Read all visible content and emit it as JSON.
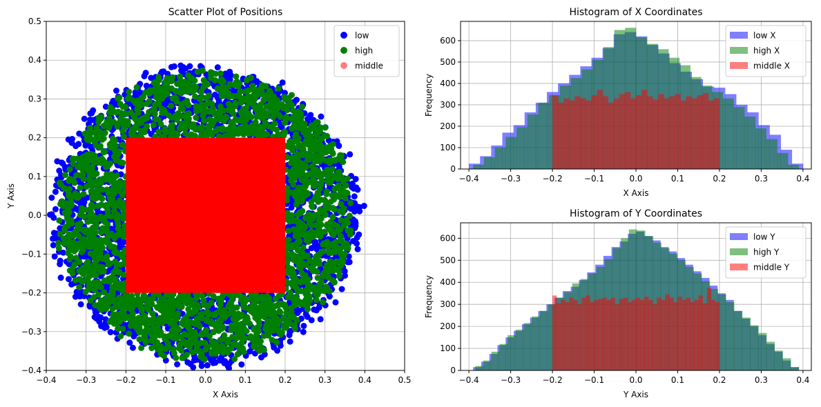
{
  "chart_data": [
    {
      "type": "scatter",
      "title": "Scatter Plot of Positions",
      "xlabel": "X Axis",
      "ylabel": "Y Axis",
      "xlim": [
        -0.4,
        0.5
      ],
      "ylim": [
        -0.4,
        0.5
      ],
      "xticks": [
        -0.4,
        -0.3,
        -0.2,
        -0.1,
        0.0,
        0.1,
        0.2,
        0.3,
        0.4,
        0.5
      ],
      "xtick_labels": [
        "−0.4",
        "−0.3",
        "−0.2",
        "−0.1",
        "0.0",
        "0.1",
        "0.2",
        "0.3",
        "0.4",
        "0.5"
      ],
      "yticks": [
        -0.4,
        -0.3,
        -0.2,
        -0.1,
        0.0,
        0.1,
        0.2,
        0.3,
        0.4,
        0.5
      ],
      "ytick_labels": [
        "−0.4",
        "−0.3",
        "−0.2",
        "−0.1",
        "0.0",
        "0.1",
        "0.2",
        "0.3",
        "0.4",
        "0.5"
      ],
      "grid": true,
      "legend_position": "top-right",
      "series": [
        {
          "name": "low",
          "color": "#0000ff",
          "alpha": 1.0,
          "outer_radius": 0.4,
          "inner_halfwidth": 0.2
        },
        {
          "name": "high",
          "color": "#008000",
          "alpha": 1.0,
          "outer_radius": 0.39,
          "inner_halfwidth": 0.2
        },
        {
          "name": "middle",
          "color": "#ff0000",
          "alpha": 0.5,
          "region": {
            "x": [
              -0.2,
              0.2
            ],
            "y": [
              -0.2,
              0.2
            ]
          }
        }
      ]
    },
    {
      "type": "bar",
      "title": "Histogram of X Coordinates",
      "xlabel": "X Axis",
      "ylabel": "Frequency",
      "xlim": [
        -0.42,
        0.42
      ],
      "ylim": [
        0,
        690
      ],
      "xticks": [
        -0.4,
        -0.3,
        -0.2,
        -0.1,
        0.0,
        0.1,
        0.2,
        0.3,
        0.4
      ],
      "xtick_labels": [
        "−0.4",
        "−0.3",
        "−0.2",
        "−0.1",
        "0.0",
        "0.1",
        "0.2",
        "0.3",
        "0.4"
      ],
      "yticks": [
        0,
        100,
        200,
        300,
        400,
        500,
        600
      ],
      "ytick_labels": [
        "0",
        "100",
        "200",
        "300",
        "400",
        "500",
        "600"
      ],
      "grid": true,
      "legend_position": "top-right",
      "series": [
        {
          "name": "low X",
          "color": "#0000ff",
          "alpha": 0.5,
          "range": [
            -0.4,
            0.4
          ],
          "bins": 30,
          "values": [
            25,
            60,
            110,
            170,
            205,
            265,
            310,
            360,
            400,
            440,
            480,
            520,
            565,
            630,
            640,
            620,
            580,
            540,
            495,
            455,
            420,
            385,
            380,
            350,
            300,
            265,
            205,
            160,
            90,
            25
          ]
        },
        {
          "name": "high X",
          "color": "#008000",
          "alpha": 0.5,
          "range": [
            -0.39,
            0.39
          ],
          "bins": 30,
          "values": [
            20,
            55,
            100,
            150,
            195,
            255,
            310,
            345,
            390,
            425,
            465,
            510,
            570,
            650,
            660,
            615,
            585,
            560,
            520,
            485,
            430,
            390,
            360,
            330,
            290,
            245,
            190,
            140,
            75,
            20
          ]
        },
        {
          "name": "middle X",
          "color": "#ff0000",
          "alpha": 0.5,
          "range": [
            -0.2,
            0.2
          ],
          "bins": 30,
          "values": [
            345,
            310,
            330,
            320,
            340,
            330,
            320,
            345,
            370,
            340,
            310,
            330,
            350,
            360,
            330,
            345,
            370,
            340,
            325,
            350,
            330,
            340,
            350,
            320,
            340,
            330,
            345,
            355,
            320,
            330
          ]
        }
      ]
    },
    {
      "type": "bar",
      "title": "Histogram of Y Coordinates",
      "xlabel": "Y Axis",
      "ylabel": "Frequency",
      "xlim": [
        -0.42,
        0.42
      ],
      "ylim": [
        0,
        670
      ],
      "xticks": [
        -0.4,
        -0.3,
        -0.2,
        -0.1,
        0.0,
        0.1,
        0.2,
        0.3,
        0.4
      ],
      "xtick_labels": [
        "−0.4",
        "−0.3",
        "−0.2",
        "−0.1",
        "0.0",
        "0.1",
        "0.2",
        "0.3",
        "0.4"
      ],
      "yticks": [
        0,
        100,
        200,
        300,
        400,
        500,
        600
      ],
      "ytick_labels": [
        "0",
        "100",
        "200",
        "300",
        "400",
        "500",
        "600"
      ],
      "grid": true,
      "legend_position": "top-right",
      "series": [
        {
          "name": "low Y",
          "color": "#0000ff",
          "alpha": 0.5,
          "range": [
            -0.39,
            0.39
          ],
          "bins": 40,
          "values": [
            15,
            40,
            75,
            115,
            150,
            180,
            210,
            240,
            270,
            300,
            330,
            360,
            380,
            410,
            445,
            480,
            520,
            560,
            585,
            620,
            630,
            610,
            590,
            560,
            540,
            510,
            480,
            450,
            420,
            385,
            350,
            320,
            270,
            235,
            200,
            160,
            120,
            85,
            45,
            15
          ]
        },
        {
          "name": "high Y",
          "color": "#008000",
          "alpha": 0.5,
          "range": [
            -0.385,
            0.39
          ],
          "bins": 40,
          "values": [
            20,
            45,
            85,
            120,
            160,
            185,
            215,
            245,
            270,
            300,
            330,
            355,
            395,
            415,
            440,
            470,
            505,
            555,
            600,
            640,
            635,
            610,
            580,
            555,
            530,
            500,
            470,
            440,
            405,
            370,
            345,
            310,
            270,
            240,
            205,
            170,
            130,
            90,
            55,
            15
          ]
        },
        {
          "name": "middle Y",
          "color": "#ff0000",
          "alpha": 0.5,
          "range": [
            -0.2,
            0.2
          ],
          "bins": 40,
          "values": [
            340,
            305,
            320,
            310,
            330,
            320,
            300,
            330,
            340,
            310,
            320,
            325,
            330,
            320,
            330,
            300,
            325,
            330,
            310,
            320,
            330,
            320,
            335,
            320,
            300,
            330,
            320,
            345,
            330,
            310,
            335,
            320,
            330,
            310,
            320,
            340,
            305,
            375,
            320,
            310
          ]
        }
      ]
    }
  ]
}
